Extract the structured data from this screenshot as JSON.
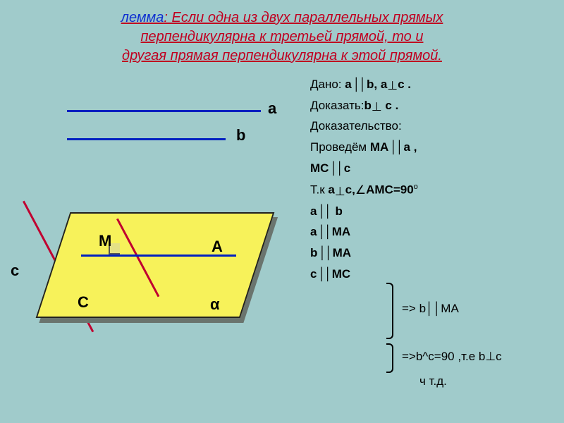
{
  "header": {
    "lemma_word": "лемма",
    "colon": ": ",
    "text_line1": "Если одна из двух параллельных  прямых",
    "text_line2a": "перпендикулярна к  третьей",
    "text_line2b": "    прямой, то и",
    "text_line3": "другая прямая перпендикулярна к этой прямой."
  },
  "labels": {
    "a": "a",
    "b": "b",
    "c": "c",
    "M": "М",
    "A": "А",
    "C": "С",
    "alpha": "α"
  },
  "proof": {
    "given_prefix": "Дано: ",
    "given_a": "a",
    "given_par": "││",
    "given_b": "b, ",
    "given_a2": "a",
    "given_perp": " ⊥ ",
    "given_c": "с .",
    "prove_prefix": "Доказать:",
    "prove_b": "b",
    "prove_perp": "⊥",
    "prove_c": " с .",
    "proof_label": "Доказательство:",
    "line_construct_prefix": "Проведём ",
    "MA": "МА",
    "par": "││",
    "a_comma": "a ,",
    "MC": "МС",
    "c": "с",
    "since_prefix": "Т.к  ",
    "a3": "a",
    "perp2": " ⊥ ",
    "c_comma": "с,",
    "angle": " ∠ ",
    "AMC_eq": "АМС=90",
    "deg": "o",
    "r_ab_a": "a",
    "r_ab_b": " b",
    "r_ama_a": "a",
    "r_ama_ma": "МА",
    "r_bma_b": "b",
    "r_bma_ma": "МА",
    "r_cmc_c": "с",
    "r_cmc_mc": "МС",
    "imp1": "=> b││МА",
    "imp2": "=>b^c=90 ,т.е b⊥с",
    "qed": "ч т.д."
  },
  "style": {
    "bg": "#a0cbcb",
    "blue": "#0020c0",
    "red": "#c00030",
    "yellow": "#f7f25a",
    "header_red": "#c00020",
    "header_blue": "#1030d0"
  }
}
